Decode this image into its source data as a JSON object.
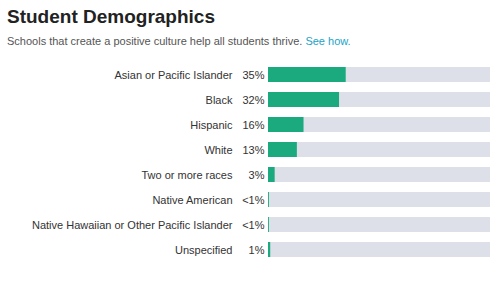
{
  "chart_data": {
    "type": "bar",
    "orientation": "horizontal",
    "title": "Student Demographics",
    "subtitle": "Schools that create a positive culture help all students thrive. ",
    "annotations": [
      {
        "text": "See how.",
        "color": "#1aa3c8"
      }
    ],
    "categories": [
      "Asian or Pacific Islander",
      "Black",
      "Hispanic",
      "White",
      "Two or more races",
      "Native American",
      "Native Hawaiian or Other Pacific Islander",
      "Unspecified"
    ],
    "values": [
      35,
      32,
      16,
      13,
      3,
      0.4,
      0.4,
      1
    ],
    "value_labels": [
      "35%",
      "32%",
      "16%",
      "13%",
      "3%",
      "<1%",
      "<1%",
      "1%"
    ],
    "data_labels": true,
    "color": "#1aaa7d",
    "xlim": [
      0,
      100
    ],
    "xticks": [],
    "tick_labels": false,
    "grid": false
  }
}
